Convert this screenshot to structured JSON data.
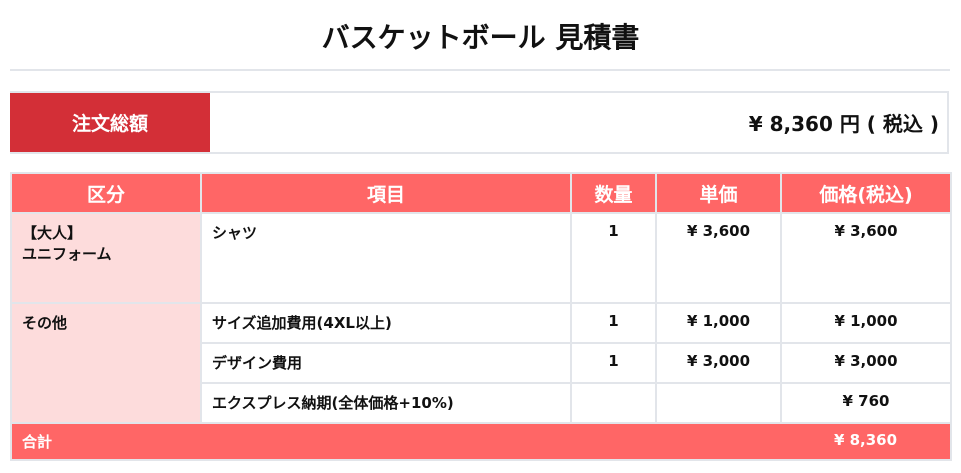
{
  "title": "バスケットボール 見積書",
  "summary": {
    "label": "注文総額",
    "value": "¥ 8,360 円 ( 税込 )"
  },
  "table": {
    "headers": [
      "区分",
      "項目",
      "数量",
      "単価",
      "価格(税込)"
    ],
    "groups": [
      {
        "category_line1": "【大人】",
        "category_line2": "ユニフォーム",
        "rows": [
          {
            "item": "シャツ",
            "qty": "1",
            "unit": "¥ 3,600",
            "price": "¥ 3,600"
          }
        ]
      },
      {
        "category_line1": "その他",
        "rows": [
          {
            "item": "サイズ追加費用(4XL以上)",
            "qty": "1",
            "unit": "¥ 1,000",
            "price": "¥ 1,000"
          },
          {
            "item": "デザイン費用",
            "qty": "1",
            "unit": "¥ 3,000",
            "price": "¥ 3,000"
          },
          {
            "item": "エクスプレス納期(全体価格+10%)",
            "qty": "",
            "unit": "",
            "price": "¥ 760"
          }
        ]
      }
    ],
    "total": {
      "label": "合計",
      "value": "¥ 8,360"
    }
  },
  "colors": {
    "label_red": "#d32f37",
    "header_red": "#ff6666",
    "category_pink": "#fddcdc"
  }
}
